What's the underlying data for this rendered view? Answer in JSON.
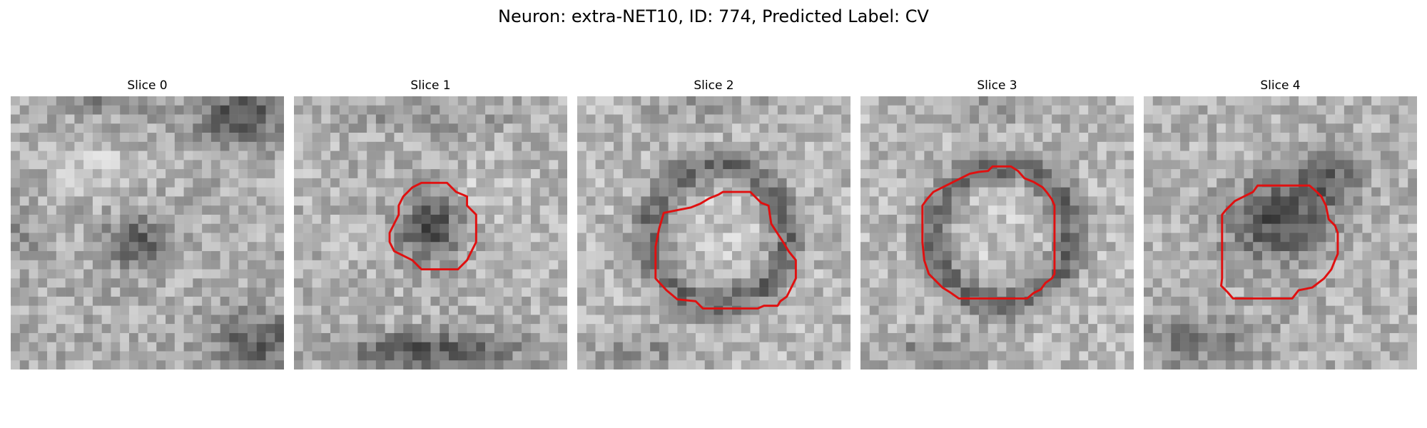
{
  "figure": {
    "title": "Neuron: extra-NET10, ID: 774, Predicted Label: CV",
    "contour_color": "#e01010"
  },
  "panels": [
    {
      "title": "Slice 0",
      "has_contour": false,
      "pattern": "blob"
    },
    {
      "title": "Slice 1",
      "has_contour": true,
      "pattern": "small-dark-cell"
    },
    {
      "title": "Slice 2",
      "has_contour": true,
      "pattern": "ring"
    },
    {
      "title": "Slice 3",
      "has_contour": true,
      "pattern": "ring"
    },
    {
      "title": "Slice 4",
      "has_contour": true,
      "pattern": "dark-cell"
    }
  ]
}
